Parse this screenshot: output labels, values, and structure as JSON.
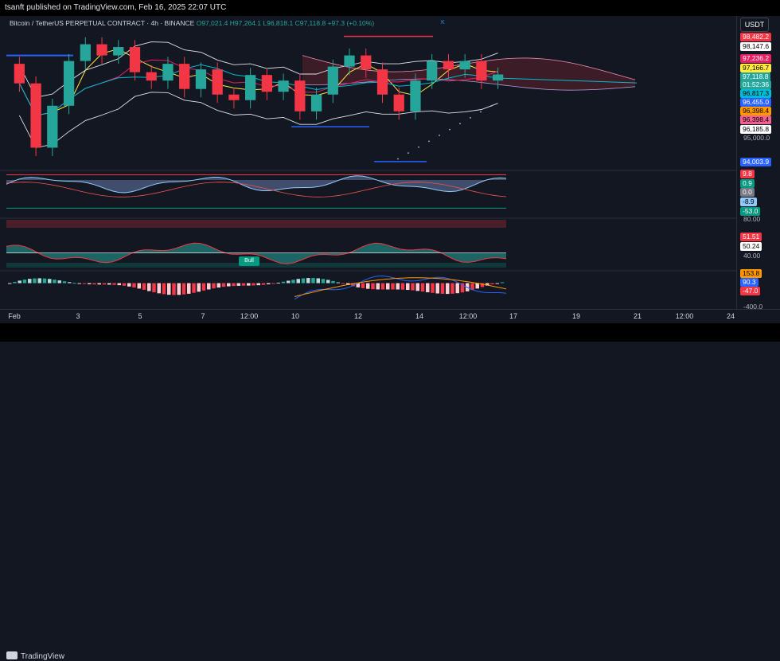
{
  "header": {
    "published": "tsanft published on TradingView.com, Feb 16, 2025 22:07 UTC"
  },
  "legend": {
    "symbol": "Bitcoin / TetherUS PERPETUAL CONTRACT",
    "interval": "4h",
    "exchange": "BINANCE",
    "open": "O97,021.4",
    "high": "H97,264.1",
    "low": "L96,818.1",
    "close": "C97,118.8",
    "change": "+97.3 (+0.10%)"
  },
  "scale": {
    "currency": "USDT"
  },
  "price_tags": [
    {
      "text": "98,482.2",
      "bg": "#f23645",
      "fg": "#ffffff"
    },
    {
      "text": "98,147.6",
      "bg": "#ffffff",
      "fg": "#000000"
    },
    {
      "text": "97,236.2",
      "bg": "#e91e63",
      "fg": "#ffffff"
    },
    {
      "text": "97,166.7",
      "bg": "#ffeb3b",
      "fg": "#000000"
    },
    {
      "text": "97,118.8",
      "bg": "#26a69a",
      "fg": "#ffffff"
    },
    {
      "text": "01:52:36",
      "bg": "#26a69a",
      "fg": "#ffffff"
    },
    {
      "text": "96,817.3",
      "bg": "#00bcd4",
      "fg": "#000000"
    },
    {
      "text": "96,455.0",
      "bg": "#2962ff",
      "fg": "#ffffff"
    },
    {
      "text": "96,398.4",
      "bg": "#ff9800",
      "fg": "#000000"
    },
    {
      "text": "96,398.4",
      "bg": "#f06292",
      "fg": "#000000"
    },
    {
      "text": "96,185.8",
      "bg": "#ffffff",
      "fg": "#000000"
    },
    {
      "text": "95,000.0",
      "bg": "",
      "fg": "#b2b5be"
    },
    {
      "text": "94,003.9",
      "bg": "#2962ff",
      "fg": "#ffffff"
    }
  ],
  "osc1_tags": [
    {
      "text": "9.8",
      "bg": "#f23645",
      "fg": "#ffffff"
    },
    {
      "text": "0.9",
      "bg": "#089981",
      "fg": "#ffffff"
    },
    {
      "text": "0.0",
      "bg": "#787b86",
      "fg": "#ffffff"
    },
    {
      "text": "-8.9",
      "bg": "#90caf9",
      "fg": "#000000"
    },
    {
      "text": "-53.0",
      "bg": "#089981",
      "fg": "#ffffff"
    }
  ],
  "osc2_tags": [
    {
      "text": "80.00",
      "bg": "",
      "fg": "#b2b5be"
    },
    {
      "text": "51.51",
      "bg": "#f23645",
      "fg": "#ffffff"
    },
    {
      "text": "50.24",
      "bg": "#ffffff",
      "fg": "#000000"
    },
    {
      "text": "40.00",
      "bg": "",
      "fg": "#b2b5be"
    }
  ],
  "osc3_tags": [
    {
      "text": "153.8",
      "bg": "#ff9800",
      "fg": "#000000"
    },
    {
      "text": "90.3",
      "bg": "#2962ff",
      "fg": "#ffffff"
    },
    {
      "text": "-47.0",
      "bg": "#f23645",
      "fg": "#ffffff"
    },
    {
      "text": "-400.0",
      "bg": "",
      "fg": "#b2b5be"
    }
  ],
  "bull_label": "Bull",
  "kumo_marker": "K",
  "x_ticks": [
    "Feb",
    "3",
    "5",
    "7",
    "12:00",
    "10",
    "12",
    "14",
    "12:00",
    "17",
    "19",
    "21",
    "12:00",
    "24"
  ],
  "footer": {
    "brand": "TradingView"
  },
  "chart_data": [
    {
      "type": "candlestick",
      "title": "",
      "symbol": "Bitcoin / TetherUS PERPETUAL CONTRACT",
      "interval": "4h",
      "exchange": "BINANCE",
      "ylim": [
        93800,
        98700
      ],
      "overlays": [
        "Bollinger Bands",
        "Ichimoku Cloud",
        "Moving averages",
        "Parabolic SAR"
      ],
      "candles_estimated": [
        {
          "o": 97500,
          "c": 96800
        },
        {
          "o": 96800,
          "c": 94500
        },
        {
          "o": 94500,
          "c": 96000
        },
        {
          "o": 96000,
          "c": 97600
        },
        {
          "o": 97600,
          "c": 98200
        },
        {
          "o": 98200,
          "c": 97800
        },
        {
          "o": 97800,
          "c": 98100
        },
        {
          "o": 98100,
          "c": 97200
        },
        {
          "o": 97200,
          "c": 96900
        },
        {
          "o": 96900,
          "c": 97500
        },
        {
          "o": 97500,
          "c": 96600
        },
        {
          "o": 96600,
          "c": 97300
        },
        {
          "o": 97300,
          "c": 96400
        },
        {
          "o": 96400,
          "c": 96200
        },
        {
          "o": 96200,
          "c": 97100
        },
        {
          "o": 97100,
          "c": 96500
        },
        {
          "o": 96500,
          "c": 96900
        },
        {
          "o": 96900,
          "c": 95800
        },
        {
          "o": 95800,
          "c": 96400
        },
        {
          "o": 96400,
          "c": 97400
        },
        {
          "o": 97400,
          "c": 97800
        },
        {
          "o": 97800,
          "c": 97300
        },
        {
          "o": 97300,
          "c": 96400
        },
        {
          "o": 96400,
          "c": 95800
        },
        {
          "o": 95800,
          "c": 96900
        },
        {
          "o": 96900,
          "c": 97600
        },
        {
          "o": 97600,
          "c": 97300
        },
        {
          "o": 97300,
          "c": 97600
        },
        {
          "o": 97600,
          "c": 96900
        },
        {
          "o": 96900,
          "c": 97118.8
        }
      ]
    },
    {
      "type": "line",
      "title": "",
      "ylim": [
        -60,
        15
      ],
      "levels": [
        9.8,
        0.9,
        0.0,
        -8.9,
        -53.0
      ]
    },
    {
      "type": "area",
      "title": "",
      "ylim": [
        35,
        85
      ],
      "levels": [
        80.0,
        51.51,
        50.24,
        40.0
      ]
    },
    {
      "type": "bar",
      "title": "",
      "ylim": [
        -450,
        200
      ],
      "levels": [
        153.8,
        90.3,
        -47.0,
        -400.0
      ]
    }
  ]
}
